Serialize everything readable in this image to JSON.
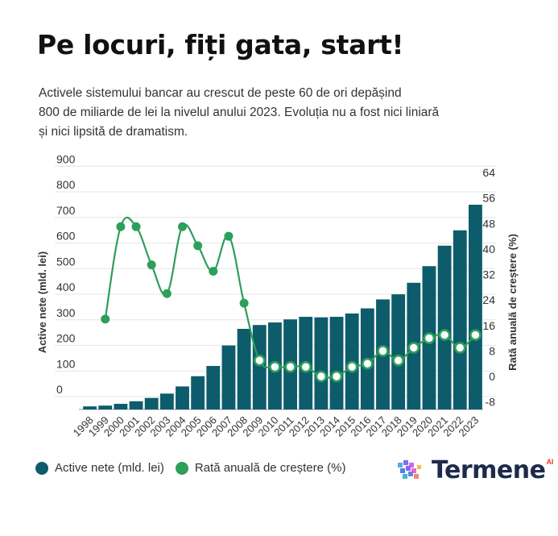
{
  "title": "Pe locuri, fiți gata, start!",
  "subtitle_lines": [
    "Activele sistemului bancar au crescut de peste 60 de ori depășind",
    "800 de miliarde de lei la nivelul anului 2023. Evoluția nu a fost nici liniară",
    "și nici lipsită de dramatism."
  ],
  "colors": {
    "bars": "#0d5c6b",
    "line": "#2e9e5b",
    "grid": "#e6e6e6",
    "axis_text": "#333333",
    "brand_text": "#1e2a4a",
    "brand_ai": "#e0442c"
  },
  "legend": {
    "bars_label": "Active nete (mld. lei)",
    "line_label": "Rată anuală de creștere (%)"
  },
  "brand": {
    "name": "Termene",
    "ai": "AI",
    "logo_icon": "cube-grid-logo-icon"
  },
  "chart_data": {
    "type": "bar",
    "title": "",
    "categories": [
      "1998",
      "1999",
      "2000",
      "2001",
      "2002",
      "2003",
      "2004",
      "2005",
      "2006",
      "2007",
      "2008",
      "2009",
      "2010",
      "2011",
      "2012",
      "2013",
      "2014",
      "2015",
      "2016",
      "2017",
      "2018",
      "2019",
      "2020",
      "2021",
      "2022",
      "2023"
    ],
    "series": [
      {
        "name": "Active nete (mld. lei)",
        "type": "bar",
        "axis": "left",
        "values": [
          12,
          15,
          22,
          32,
          45,
          62,
          90,
          130,
          170,
          250,
          315,
          330,
          340,
          352,
          362,
          360,
          362,
          375,
          395,
          430,
          450,
          495,
          560,
          640,
          700,
          800
        ]
      },
      {
        "name": "Rată anuală de creștere (%)",
        "type": "line",
        "axis": "right",
        "values": [
          null,
          18,
          47,
          47,
          35,
          26,
          47,
          41,
          33,
          44,
          23,
          5,
          3,
          3,
          3,
          0,
          0,
          3,
          4,
          8,
          5,
          9,
          12,
          13,
          9,
          13
        ]
      }
    ],
    "ylabel": "Active nete (mld. lei)",
    "ylim": [
      0,
      900
    ],
    "y_ticks": [
      0,
      100,
      200,
      300,
      400,
      500,
      600,
      700,
      800,
      900
    ],
    "y2label": "Rată anuală de creștere (%)",
    "y2lim": [
      -8,
      64
    ],
    "y2_ticks": [
      -8,
      0,
      8,
      16,
      24,
      32,
      40,
      48,
      56,
      64
    ],
    "grid": true,
    "legend_position": "bottom-left"
  }
}
